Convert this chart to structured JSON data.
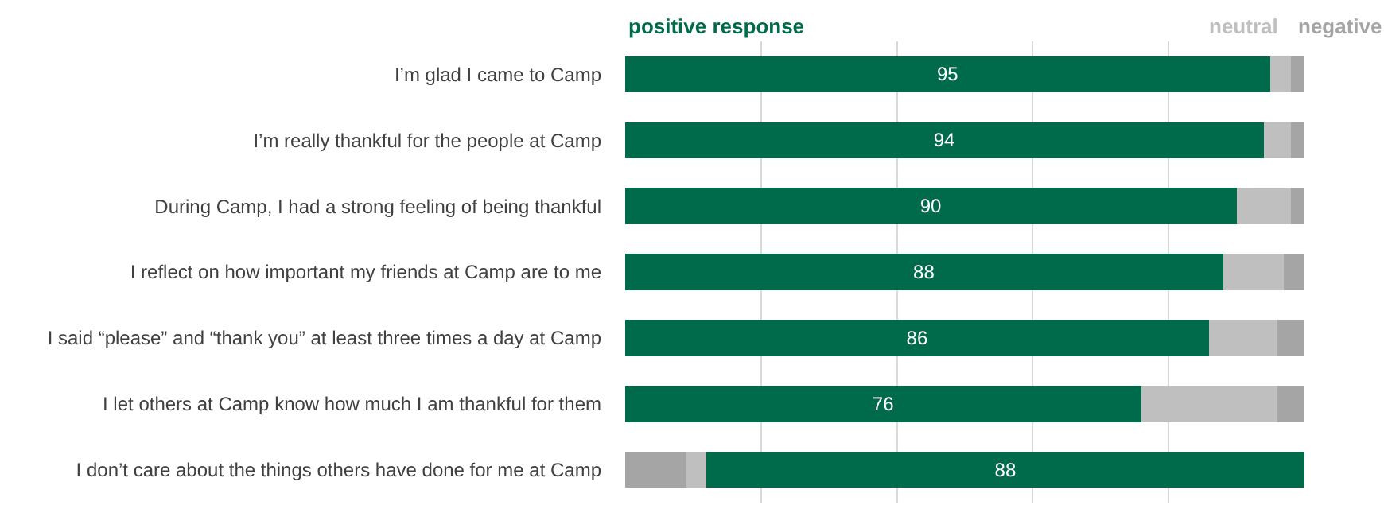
{
  "chart_data": {
    "type": "bar",
    "orientation": "horizontal",
    "stacked": true,
    "categories": [
      "I’m glad I came to Camp",
      "I’m really thankful for the people at Camp",
      "During Camp, I had a strong feeling of being thankful",
      "I reflect on how important my friends at Camp are to me",
      "I said “please” and “thank you” at least three times a day at Camp",
      "I let others at Camp know how much I am thankful for them",
      "I don’t care about the things others have done for me at Camp"
    ],
    "series": [
      {
        "color": "#a5a5a5",
        "values": [
          null,
          null,
          null,
          null,
          null,
          null,
          9
        ]
      },
      {
        "color": "#bfbfbf",
        "values": [
          null,
          null,
          null,
          null,
          null,
          null,
          3
        ]
      },
      {
        "name": "positive response",
        "color": "#006b4a",
        "values": [
          95,
          94,
          90,
          88,
          86,
          76,
          88
        ],
        "value_labels": [
          "95",
          "94",
          "90",
          "88",
          "86",
          "76",
          "88"
        ]
      },
      {
        "name": "neutral",
        "color": "#bfbfbf",
        "values": [
          3,
          4,
          8,
          9,
          10,
          20,
          null
        ]
      },
      {
        "name": "negative",
        "color": "#a5a5a5",
        "values": [
          2,
          2,
          2,
          3,
          4,
          4,
          null
        ]
      }
    ],
    "xlim": [
      0,
      100
    ],
    "xticks": [
      {
        "value": 20,
        "label": null
      },
      {
        "value": 40,
        "label": null
      },
      {
        "value": 60,
        "label": null
      },
      {
        "value": 80,
        "label": null
      }
    ],
    "tick_labels": "y",
    "grid": "x",
    "legend": false
  }
}
